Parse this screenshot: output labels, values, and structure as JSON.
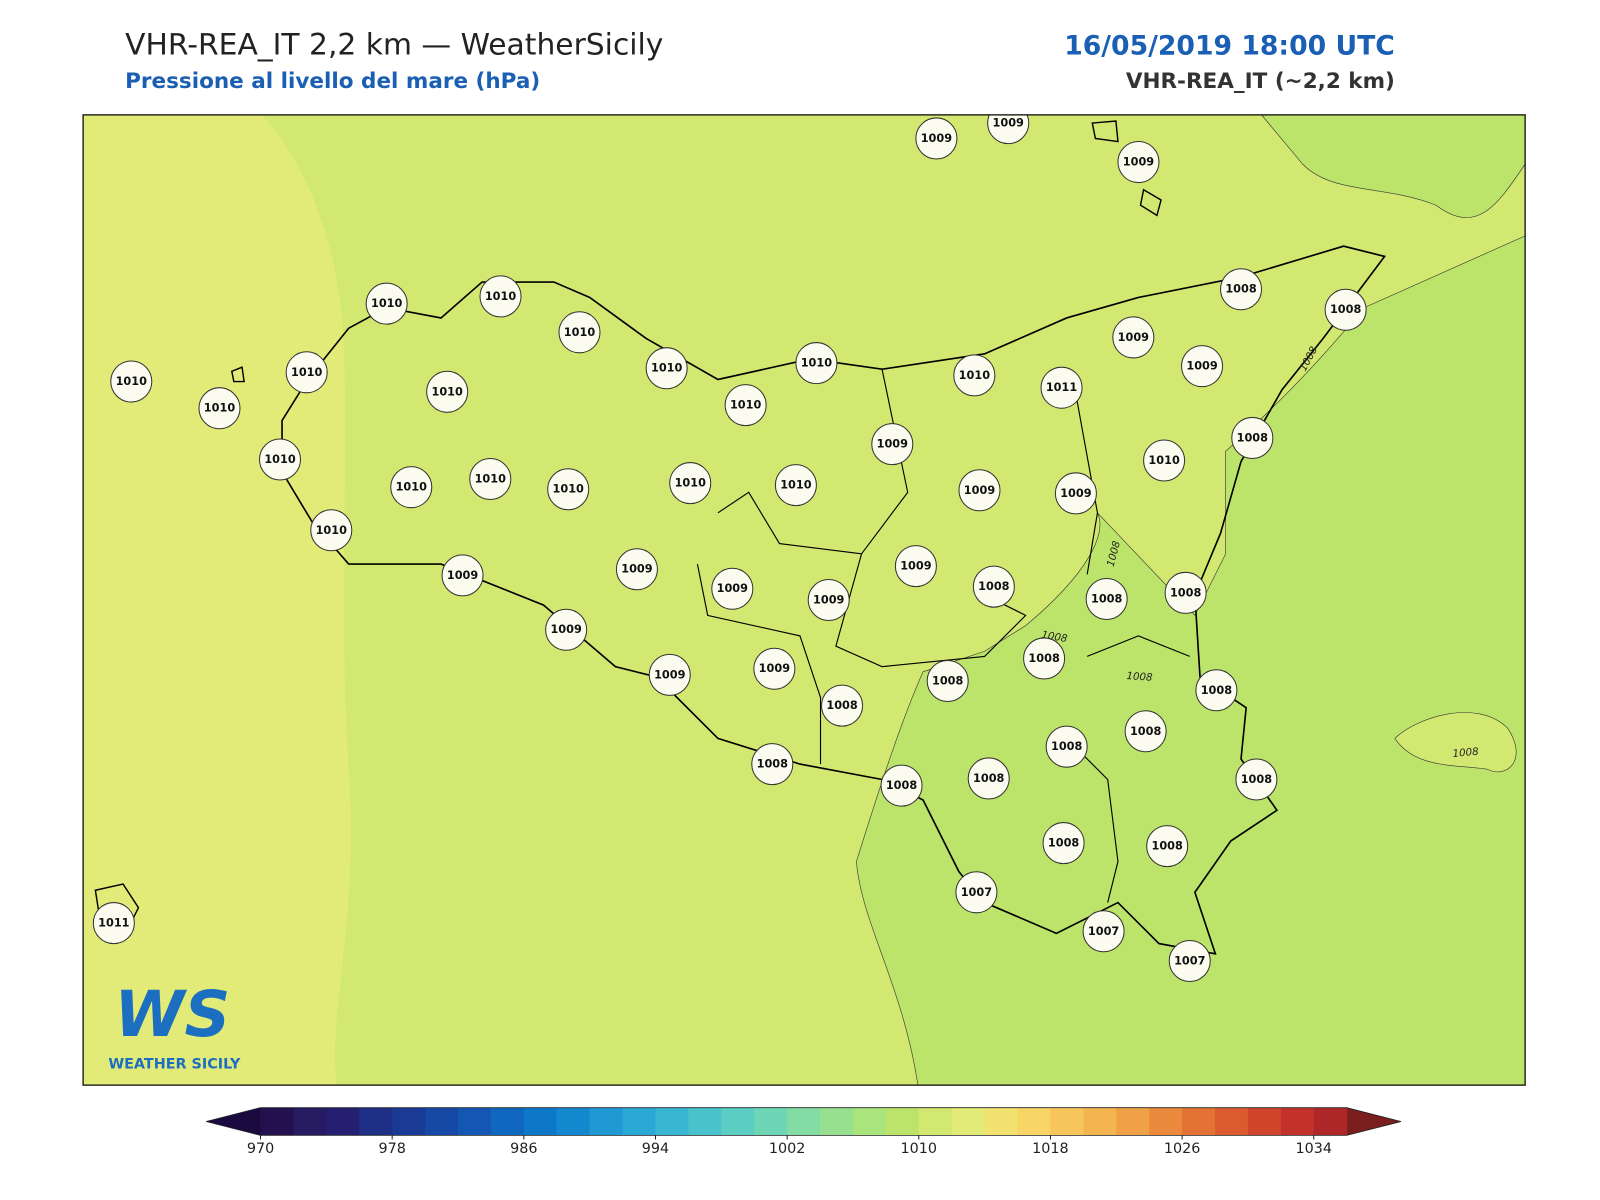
{
  "header": {
    "title": "VHR-REA_IT 2,2 km — WeatherSicily",
    "subtitle": "Pressione al livello del mare (hPa)",
    "datetime": "16/05/2019 18:00 UTC",
    "model": "VHR-REA_IT (~2,2 km)"
  },
  "stations": [
    1009,
    1009,
    1009,
    1010,
    1010,
    1010,
    1010,
    1010,
    1010,
    1010,
    1010,
    1010,
    1010,
    1010,
    1011,
    1009,
    1009,
    1008,
    1008,
    1008,
    1010,
    1010,
    1010,
    1010,
    1010,
    1010,
    1009,
    1009,
    1009,
    1010,
    1010,
    1009,
    1009,
    1009,
    1009,
    1009,
    1008,
    1008,
    1008,
    1009,
    1009,
    1009,
    1008,
    1008,
    1008,
    1008,
    1008,
    1008,
    1008,
    1008,
    1008,
    1008,
    1008,
    1008,
    1007,
    1007,
    1007,
    1011
  ],
  "contour_labels": [
    "1008",
    "1008",
    "1008",
    "1008",
    "1008"
  ],
  "logo": {
    "text": "WS",
    "caption": "WEATHER SICILY"
  },
  "colorbar": {
    "range": [
      970,
      1036
    ],
    "ticks": [
      970,
      978,
      986,
      994,
      1002,
      1010,
      1018,
      1026,
      1034
    ],
    "colors": [
      "#240f4f",
      "#261a63",
      "#251f72",
      "#1f2f85",
      "#1a3a96",
      "#1648a6",
      "#1357b3",
      "#1067bf",
      "#0e78c8",
      "#1488cf",
      "#1f98d4",
      "#2aa8d6",
      "#39b6d2",
      "#4ac2cb",
      "#5ccdc2",
      "#6fd6b5",
      "#83dca4",
      "#96e090",
      "#a9e47d",
      "#bde46a",
      "#d3e870",
      "#e3eb78",
      "#f2e370",
      "#f8d565",
      "#f7c55b",
      "#f4b450",
      "#f0a046",
      "#eb893d",
      "#e47235",
      "#dc5a2f",
      "#d0442c",
      "#c2322b",
      "#ad2628"
    ],
    "under": "#1a0a40",
    "over": "#7a1e1e"
  }
}
